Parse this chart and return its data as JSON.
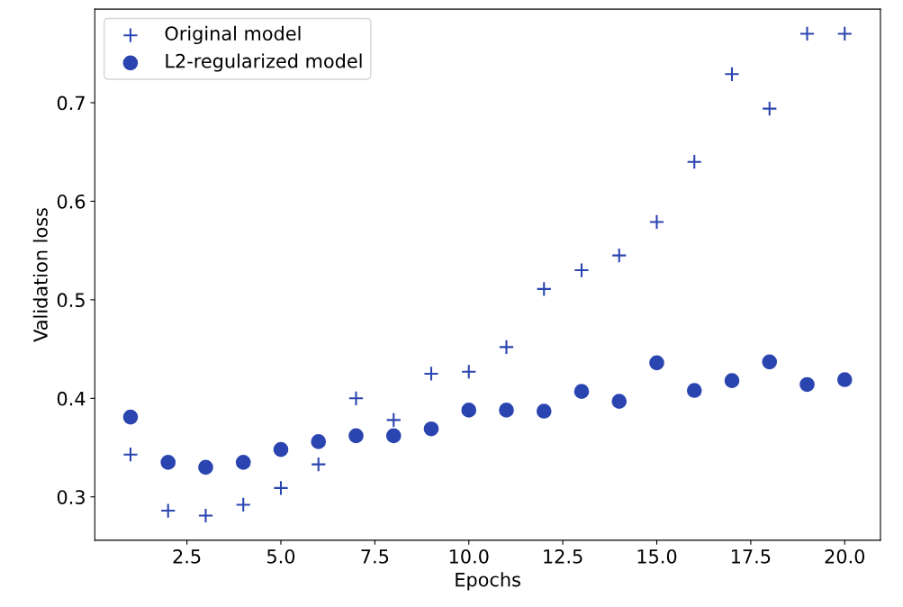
{
  "chart_data": {
    "type": "scatter",
    "xlabel": "Epochs",
    "ylabel": "Validation loss",
    "x": [
      1,
      2,
      3,
      4,
      5,
      6,
      7,
      8,
      9,
      10,
      11,
      12,
      13,
      14,
      15,
      16,
      17,
      18,
      19,
      20
    ],
    "series": [
      {
        "name": "Original model",
        "color": "#2b45b0",
        "marker": "cross",
        "values": [
          0.343,
          0.286,
          0.281,
          0.292,
          0.309,
          0.333,
          0.4,
          0.378,
          0.425,
          0.427,
          0.452,
          0.511,
          0.53,
          0.545,
          0.579,
          0.64,
          0.729,
          0.694,
          0.77,
          0.77
        ]
      },
      {
        "name": "L2-regularized model",
        "color": "#2b45b0",
        "marker": "circle",
        "values": [
          0.381,
          0.335,
          0.33,
          0.335,
          0.348,
          0.356,
          0.362,
          0.362,
          0.369,
          0.388,
          0.388,
          0.387,
          0.407,
          0.397,
          0.436,
          0.408,
          0.418,
          0.437,
          0.414,
          0.419
        ]
      }
    ],
    "xlim": [
      0.05,
      20.95
    ],
    "ylim": [
      0.256,
      0.795
    ],
    "xticks": [
      {
        "value": 2.5,
        "label": "2.5"
      },
      {
        "value": 5,
        "label": "5.0"
      },
      {
        "value": 7.5,
        "label": "7.5"
      },
      {
        "value": 10,
        "label": "10.0"
      },
      {
        "value": 12.5,
        "label": "12.5"
      },
      {
        "value": 15,
        "label": "15.0"
      },
      {
        "value": 17.5,
        "label": "17.5"
      },
      {
        "value": 20,
        "label": "20.0"
      }
    ],
    "yticks": [
      0.3,
      0.4,
      0.5,
      0.6,
      0.7
    ],
    "grid": false,
    "legend": "top left"
  }
}
